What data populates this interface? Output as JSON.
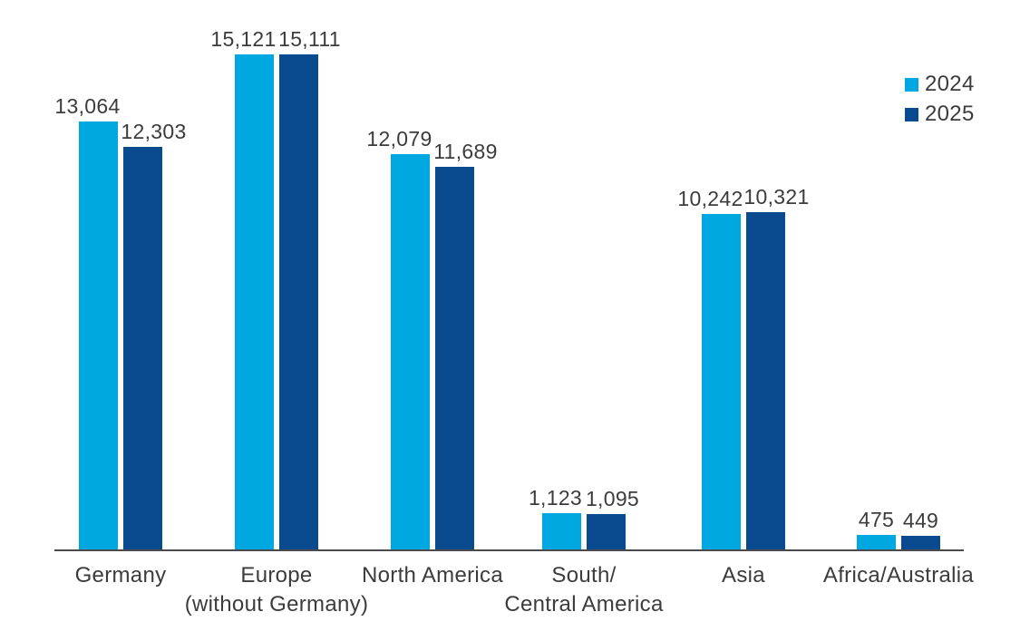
{
  "chart_data": {
    "type": "bar",
    "title": "",
    "xlabel": "",
    "ylabel": "",
    "categories": [
      "Germany",
      "Europe (without Germany)",
      "North America",
      "South/Central America",
      "Asia",
      "Africa/Australia"
    ],
    "category_label_lines": [
      [
        "Germany"
      ],
      [
        "Europe",
        "(without Germany)"
      ],
      [
        "North America"
      ],
      [
        "South/",
        "Central America"
      ],
      [
        "Asia"
      ],
      [
        "Africa/Australia"
      ]
    ],
    "series": [
      {
        "name": "2024",
        "color": "#00a8e2",
        "values": [
          13064,
          15121,
          12079,
          1123,
          10242,
          475
        ]
      },
      {
        "name": "2025",
        "color": "#0a4a8f",
        "values": [
          12303,
          15111,
          11689,
          1095,
          10321,
          449
        ]
      }
    ],
    "value_labels": [
      [
        "13,064",
        "15,121",
        "12,079",
        "1,123",
        "10,242",
        "475"
      ],
      [
        "12,303",
        "15,111",
        "11,689",
        "1,095",
        "10,321",
        "449"
      ]
    ],
    "ylim": [
      0,
      15500
    ],
    "grid": false,
    "legend_position": "top-right",
    "colors": {
      "axis": "#4b4b4d",
      "text": "#3c3c3c"
    }
  }
}
